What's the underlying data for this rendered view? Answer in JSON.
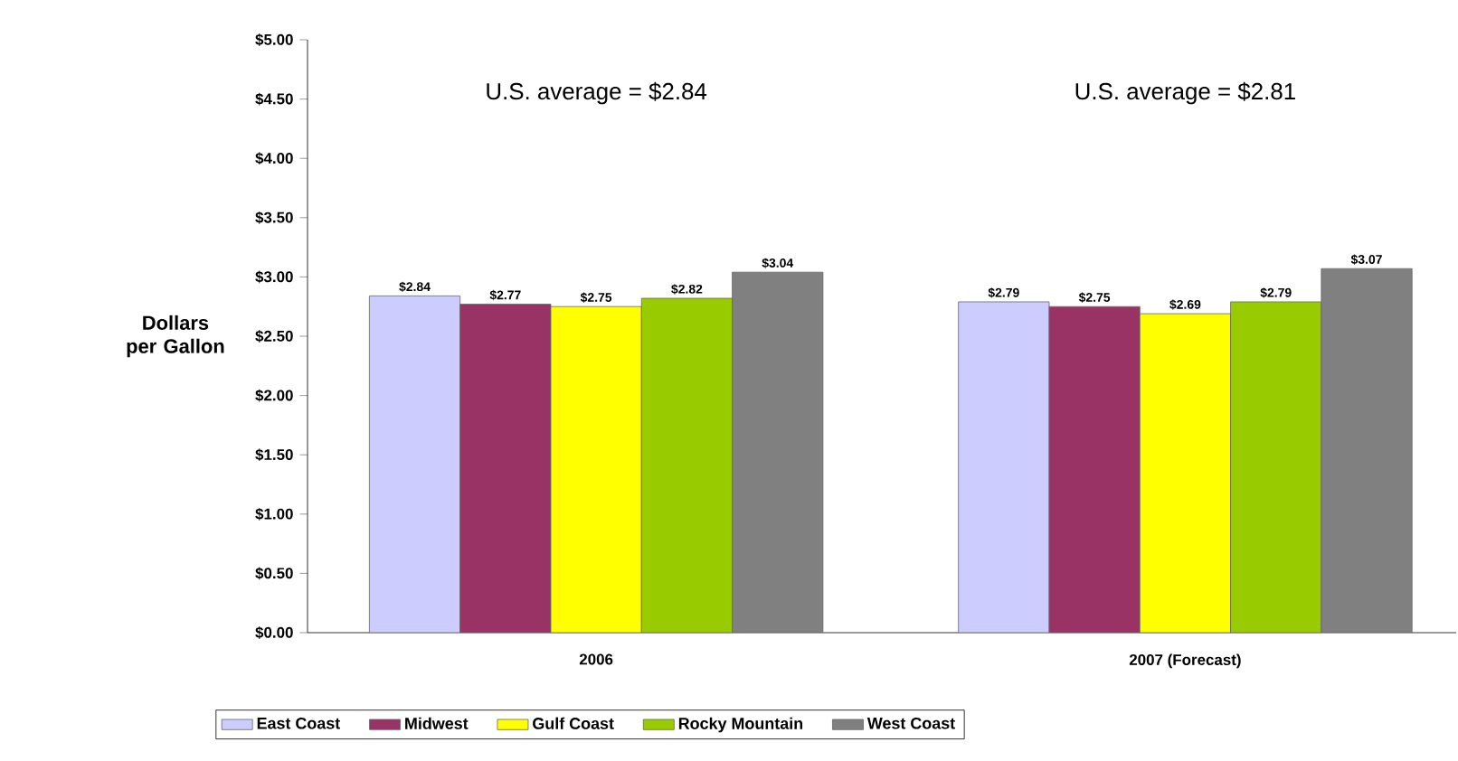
{
  "chart_data": {
    "type": "bar",
    "ylabel": "Dollars per Gallon",
    "categories": [
      "2006",
      "2007 (Forecast)"
    ],
    "series": [
      {
        "name": "East Coast",
        "color": "#ccccff",
        "values": [
          2.84,
          2.79
        ],
        "value_labels": [
          "$2.84",
          "$2.79"
        ]
      },
      {
        "name": "Midwest",
        "color": "#993366",
        "values": [
          2.77,
          2.75
        ],
        "value_labels": [
          "$2.77",
          "$2.75"
        ]
      },
      {
        "name": "Gulf Coast",
        "color": "#ffff00",
        "values": [
          2.75,
          2.69
        ],
        "value_labels": [
          "$2.75",
          "$2.69"
        ]
      },
      {
        "name": "Rocky Mountain",
        "color": "#99cc00",
        "values": [
          2.82,
          2.79
        ],
        "value_labels": [
          "$2.82",
          "$2.79"
        ]
      },
      {
        "name": "West Coast",
        "color": "#808080",
        "values": [
          3.04,
          3.07
        ],
        "value_labels": [
          "$3.04",
          "$3.07"
        ]
      }
    ],
    "ylim": [
      0,
      5
    ],
    "yticks": [
      {
        "value": 0,
        "label": "$0.00"
      },
      {
        "value": 0.5,
        "label": "$0.50"
      },
      {
        "value": 1,
        "label": "$1.00"
      },
      {
        "value": 1.5,
        "label": "$1.50"
      },
      {
        "value": 2,
        "label": "$2.00"
      },
      {
        "value": 2.5,
        "label": "$2.50"
      },
      {
        "value": 3,
        "label": "$3.00"
      },
      {
        "value": 3.5,
        "label": "$3.50"
      },
      {
        "value": 4,
        "label": "$4.00"
      },
      {
        "value": 4.5,
        "label": "$4.50"
      },
      {
        "value": 5,
        "label": "$5.00"
      }
    ],
    "annotations": [
      "U.S. average = $2.84",
      "U.S. average = $2.81"
    ],
    "legend": "bottom"
  }
}
